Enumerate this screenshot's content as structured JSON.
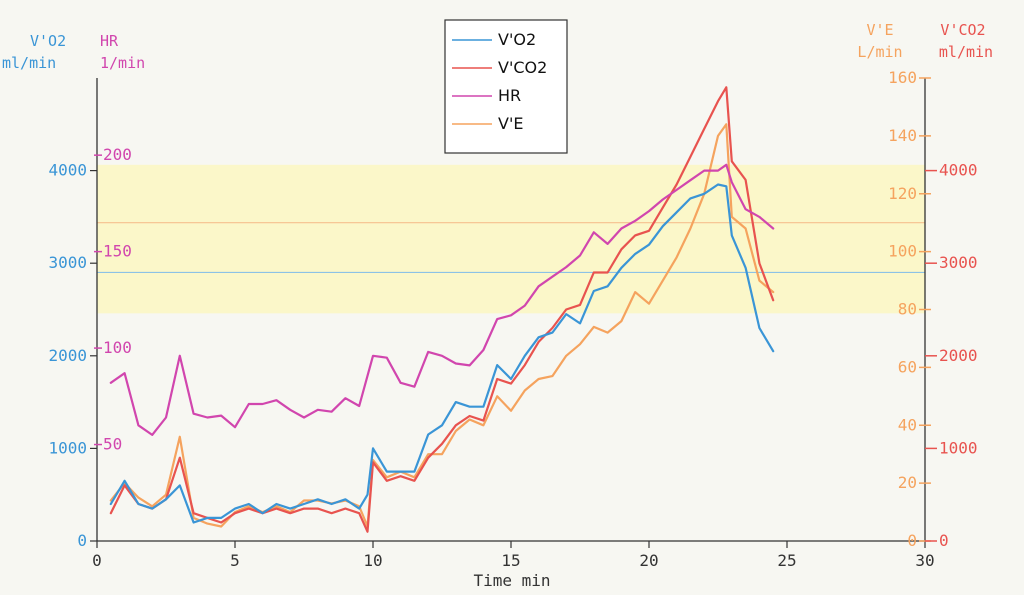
{
  "chart_data": {
    "type": "line",
    "xlabel": "Time  min",
    "xlim": [
      0,
      30
    ],
    "x_ticks": [
      0,
      5,
      10,
      15,
      20,
      25,
      30
    ],
    "axes": {
      "vo2": {
        "title": "V'O2",
        "unit": "ml/min",
        "range": [
          0,
          5000
        ],
        "ticks": [
          0,
          1000,
          2000,
          3000,
          4000
        ],
        "color": "#3a95d6"
      },
      "hr": {
        "title": "HR",
        "unit": "1/min",
        "range": [
          0,
          240
        ],
        "ticks": [
          50,
          100,
          150,
          200
        ],
        "color": "#d146ae"
      },
      "ve": {
        "title": "V'E",
        "unit": "L/min",
        "range": [
          0,
          160
        ],
        "ticks": [
          0,
          20,
          40,
          60,
          80,
          100,
          120,
          140,
          160
        ],
        "color": "#f5a35e"
      },
      "vco2": {
        "title": "V'CO2",
        "unit": "ml/min",
        "range": [
          0,
          5000
        ],
        "ticks": [
          0,
          1000,
          2000,
          3000,
          4000
        ],
        "color": "#e8534f"
      }
    },
    "legend": {
      "placement": "top-center",
      "entries": [
        "V'O2",
        "V'CO2",
        "HR",
        "V'E"
      ]
    },
    "bands": [
      {
        "axis": "hr",
        "from": 118,
        "to": 195,
        "color": "#fbf7c9"
      }
    ],
    "reference_lines": [
      {
        "axis": "vo2",
        "value": 2900,
        "color": "#8cc2e6"
      },
      {
        "axis": "ve",
        "value": 110,
        "color": "#f5c08e"
      }
    ],
    "series": [
      {
        "name": "V'O2",
        "axis": "vo2",
        "color": "#3a95d6",
        "x": [
          0.5,
          1,
          1.5,
          2,
          2.5,
          3,
          3.5,
          4,
          4.5,
          5,
          5.5,
          6,
          6.5,
          7,
          7.5,
          8,
          8.5,
          9,
          9.5,
          9.8,
          10,
          10.5,
          11,
          11.5,
          12,
          12.5,
          13,
          13.5,
          14,
          14.5,
          15,
          15.5,
          16,
          16.5,
          17,
          17.5,
          18,
          18.5,
          19,
          19.5,
          20,
          20.5,
          21,
          21.5,
          22,
          22.5,
          22.8,
          23,
          23.5,
          24,
          24.5
        ],
        "y": [
          400,
          650,
          400,
          350,
          450,
          600,
          200,
          250,
          250,
          350,
          400,
          300,
          400,
          350,
          400,
          450,
          400,
          450,
          350,
          500,
          1000,
          750,
          750,
          750,
          1150,
          1250,
          1500,
          1450,
          1450,
          1900,
          1750,
          2000,
          2200,
          2250,
          2450,
          2350,
          2700,
          2750,
          2950,
          3100,
          3200,
          3400,
          3550,
          3700,
          3750,
          3850,
          3830,
          3300,
          2950,
          2300,
          2050
        ]
      },
      {
        "name": "V'CO2",
        "axis": "vco2",
        "color": "#e8534f",
        "x": [
          0.5,
          1,
          1.5,
          2,
          2.5,
          3,
          3.5,
          4,
          4.5,
          5,
          5.5,
          6,
          6.5,
          7,
          7.5,
          8,
          8.5,
          9,
          9.5,
          9.8,
          10,
          10.5,
          11,
          11.5,
          12,
          12.5,
          13,
          13.5,
          14,
          14.5,
          15,
          15.5,
          16,
          16.5,
          17,
          17.5,
          18,
          18.5,
          19,
          19.5,
          20,
          20.5,
          21,
          21.5,
          22,
          22.5,
          22.8,
          23,
          23.5,
          24,
          24.5
        ],
        "y": [
          300,
          600,
          400,
          350,
          450,
          900,
          300,
          250,
          200,
          300,
          350,
          300,
          350,
          300,
          350,
          350,
          300,
          350,
          300,
          100,
          850,
          650,
          700,
          650,
          900,
          1050,
          1250,
          1350,
          1300,
          1750,
          1700,
          1900,
          2150,
          2300,
          2500,
          2550,
          2900,
          2900,
          3150,
          3300,
          3350,
          3600,
          3850,
          4150,
          4450,
          4750,
          4900,
          4100,
          3900,
          3000,
          2600
        ]
      },
      {
        "name": "HR",
        "axis": "hr",
        "color": "#d146ae",
        "x": [
          0.5,
          1,
          1.5,
          2,
          2.5,
          3,
          3.5,
          4,
          4.5,
          5,
          5.5,
          6,
          6.5,
          7,
          7.5,
          8,
          8.5,
          9,
          9.5,
          10,
          10.5,
          11,
          11.5,
          12,
          12.5,
          13,
          13.5,
          14,
          14.5,
          15,
          15.5,
          16,
          16.5,
          17,
          17.5,
          18,
          18.5,
          19,
          19.5,
          20,
          20.5,
          21,
          21.5,
          22,
          22.5,
          22.8,
          23,
          23.5,
          24,
          24.5
        ],
        "y": [
          82,
          87,
          60,
          55,
          64,
          96,
          66,
          64,
          65,
          59,
          71,
          71,
          73,
          68,
          64,
          68,
          67,
          74,
          70,
          96,
          95,
          82,
          80,
          98,
          96,
          92,
          91,
          99,
          115,
          117,
          122,
          132,
          137,
          142,
          148,
          160,
          154,
          162,
          166,
          171,
          177,
          182,
          187,
          192,
          192,
          195,
          186,
          172,
          168,
          162
        ]
      },
      {
        "name": "V'E",
        "axis": "ve",
        "color": "#f5a35e",
        "x": [
          0.5,
          1,
          1.5,
          2,
          2.5,
          3,
          3.5,
          4,
          4.5,
          5,
          5.5,
          6,
          6.5,
          7,
          7.5,
          8,
          8.5,
          9,
          9.5,
          9.8,
          10,
          10.5,
          11,
          11.5,
          12,
          12.5,
          13,
          13.5,
          14,
          14.5,
          15,
          15.5,
          16,
          16.5,
          17,
          17.5,
          18,
          18.5,
          19,
          19.5,
          20,
          20.5,
          21,
          21.5,
          22,
          22.5,
          22.8,
          23,
          23.5,
          24,
          24.5
        ],
        "y": [
          14,
          20,
          15,
          12,
          16,
          36,
          8,
          6,
          5,
          10,
          12,
          10,
          12,
          10,
          14,
          14,
          13,
          14,
          12,
          5,
          28,
          22,
          24,
          22,
          30,
          30,
          38,
          42,
          40,
          50,
          45,
          52,
          56,
          57,
          64,
          68,
          74,
          72,
          76,
          86,
          82,
          90,
          98,
          108,
          120,
          140,
          144,
          112,
          108,
          90,
          86
        ]
      }
    ]
  }
}
